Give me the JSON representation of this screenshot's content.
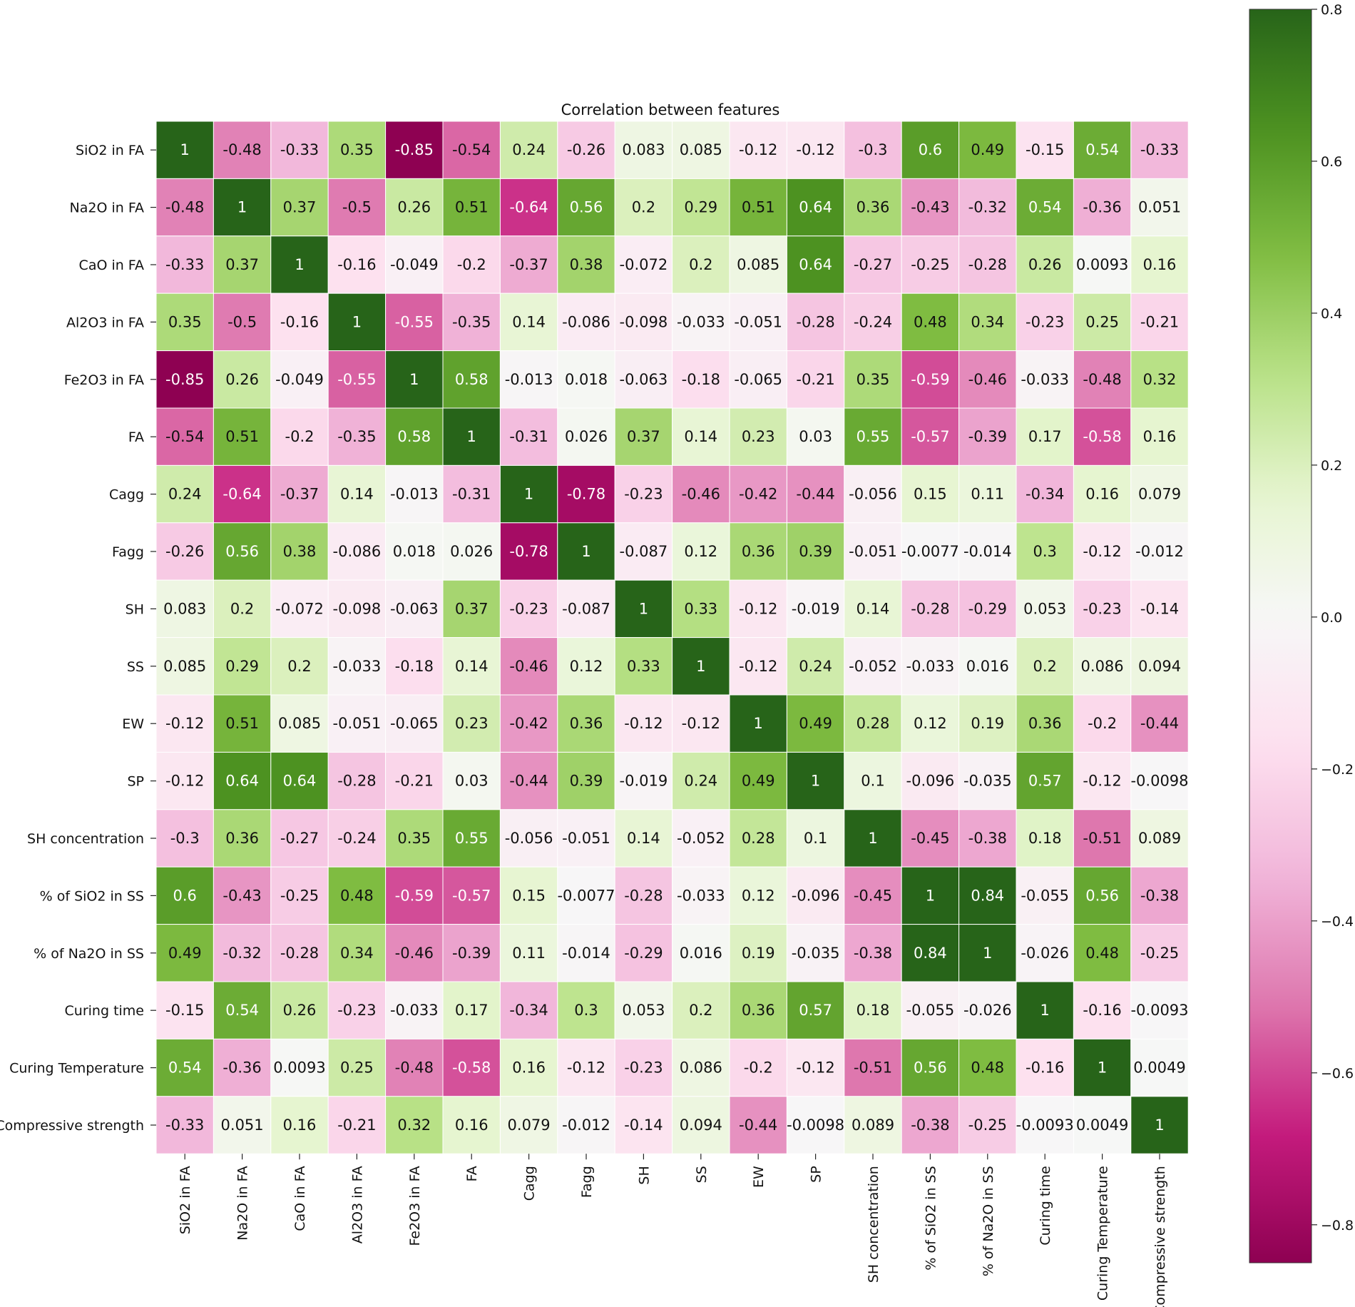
{
  "chart_data": {
    "type": "heatmap",
    "title": "Correlation between features",
    "xlabel": "",
    "ylabel": "",
    "colormap": "PiYG",
    "vmin": -0.85,
    "vmax": 0.8,
    "colorbar_ticks": [
      "0.8",
      "0.6",
      "0.4",
      "0.2",
      "0.0",
      "−0.2",
      "−0.4",
      "−0.6",
      "−0.8"
    ],
    "colorbar_tick_values": [
      0.8,
      0.6,
      0.4,
      0.2,
      0.0,
      -0.2,
      -0.4,
      -0.6,
      -0.8
    ],
    "labels": [
      "SiO2 in FA",
      "Na2O in FA",
      "CaO in FA",
      "Al2O3 in FA",
      "Fe2O3 in FA",
      "FA",
      "Cagg",
      "Fagg",
      "SH",
      "SS",
      "EW",
      "SP",
      "SH concentration",
      "% of SiO2 in SS",
      "% of Na2O in SS",
      "Curing time",
      "Curing Temperature",
      "Compressive strength"
    ],
    "matrix": [
      [
        "1",
        "-0.48",
        "-0.33",
        "0.35",
        "-0.85",
        "-0.54",
        "0.24",
        "-0.26",
        "0.083",
        "0.085",
        "-0.12",
        "-0.12",
        "-0.3",
        "0.6",
        "0.49",
        "-0.15",
        "0.54",
        "-0.33"
      ],
      [
        "-0.48",
        "1",
        "0.37",
        "-0.5",
        "0.26",
        "0.51",
        "-0.64",
        "0.56",
        "0.2",
        "0.29",
        "0.51",
        "0.64",
        "0.36",
        "-0.43",
        "-0.32",
        "0.54",
        "-0.36",
        "0.051"
      ],
      [
        "-0.33",
        "0.37",
        "1",
        "-0.16",
        "-0.049",
        "-0.2",
        "-0.37",
        "0.38",
        "-0.072",
        "0.2",
        "0.085",
        "0.64",
        "-0.27",
        "-0.25",
        "-0.28",
        "0.26",
        "0.0093",
        "0.16"
      ],
      [
        "0.35",
        "-0.5",
        "-0.16",
        "1",
        "-0.55",
        "-0.35",
        "0.14",
        "-0.086",
        "-0.098",
        "-0.033",
        "-0.051",
        "-0.28",
        "-0.24",
        "0.48",
        "0.34",
        "-0.23",
        "0.25",
        "-0.21"
      ],
      [
        "-0.85",
        "0.26",
        "-0.049",
        "-0.55",
        "1",
        "0.58",
        "-0.013",
        "0.018",
        "-0.063",
        "-0.18",
        "-0.065",
        "-0.21",
        "0.35",
        "-0.59",
        "-0.46",
        "-0.033",
        "-0.48",
        "0.32"
      ],
      [
        "-0.54",
        "0.51",
        "-0.2",
        "-0.35",
        "0.58",
        "1",
        "-0.31",
        "0.026",
        "0.37",
        "0.14",
        "0.23",
        "0.03",
        "0.55",
        "-0.57",
        "-0.39",
        "0.17",
        "-0.58",
        "0.16"
      ],
      [
        "0.24",
        "-0.64",
        "-0.37",
        "0.14",
        "-0.013",
        "-0.31",
        "1",
        "-0.78",
        "-0.23",
        "-0.46",
        "-0.42",
        "-0.44",
        "-0.056",
        "0.15",
        "0.11",
        "-0.34",
        "0.16",
        "0.079"
      ],
      [
        "-0.26",
        "0.56",
        "0.38",
        "-0.086",
        "0.018",
        "0.026",
        "-0.78",
        "1",
        "-0.087",
        "0.12",
        "0.36",
        "0.39",
        "-0.051",
        "-0.0077",
        "-0.014",
        "0.3",
        "-0.12",
        "-0.012"
      ],
      [
        "0.083",
        "0.2",
        "-0.072",
        "-0.098",
        "-0.063",
        "0.37",
        "-0.23",
        "-0.087",
        "1",
        "0.33",
        "-0.12",
        "-0.019",
        "0.14",
        "-0.28",
        "-0.29",
        "0.053",
        "-0.23",
        "-0.14"
      ],
      [
        "0.085",
        "0.29",
        "0.2",
        "-0.033",
        "-0.18",
        "0.14",
        "-0.46",
        "0.12",
        "0.33",
        "1",
        "-0.12",
        "0.24",
        "-0.052",
        "-0.033",
        "0.016",
        "0.2",
        "0.086",
        "0.094"
      ],
      [
        "-0.12",
        "0.51",
        "0.085",
        "-0.051",
        "-0.065",
        "0.23",
        "-0.42",
        "0.36",
        "-0.12",
        "-0.12",
        "1",
        "0.49",
        "0.28",
        "0.12",
        "0.19",
        "0.36",
        "-0.2",
        "-0.44"
      ],
      [
        "-0.12",
        "0.64",
        "0.64",
        "-0.28",
        "-0.21",
        "0.03",
        "-0.44",
        "0.39",
        "-0.019",
        "0.24",
        "0.49",
        "1",
        "0.1",
        "-0.096",
        "-0.035",
        "0.57",
        "-0.12",
        "-0.0098"
      ],
      [
        "-0.3",
        "0.36",
        "-0.27",
        "-0.24",
        "0.35",
        "0.55",
        "-0.056",
        "-0.051",
        "0.14",
        "-0.052",
        "0.28",
        "0.1",
        "1",
        "-0.45",
        "-0.38",
        "0.18",
        "-0.51",
        "0.089"
      ],
      [
        "0.6",
        "-0.43",
        "-0.25",
        "0.48",
        "-0.59",
        "-0.57",
        "0.15",
        "-0.0077",
        "-0.28",
        "-0.033",
        "0.12",
        "-0.096",
        "-0.45",
        "1",
        "0.84",
        "-0.055",
        "0.56",
        "-0.38"
      ],
      [
        "0.49",
        "-0.32",
        "-0.28",
        "0.34",
        "-0.46",
        "-0.39",
        "0.11",
        "-0.014",
        "-0.29",
        "0.016",
        "0.19",
        "-0.035",
        "-0.38",
        "0.84",
        "1",
        "-0.026",
        "0.48",
        "-0.25"
      ],
      [
        "-0.15",
        "0.54",
        "0.26",
        "-0.23",
        "-0.033",
        "0.17",
        "-0.34",
        "0.3",
        "0.053",
        "0.2",
        "0.36",
        "0.57",
        "0.18",
        "-0.055",
        "-0.026",
        "1",
        "-0.16",
        "-0.0093"
      ],
      [
        "0.54",
        "-0.36",
        "0.0093",
        "0.25",
        "-0.48",
        "-0.58",
        "0.16",
        "-0.12",
        "-0.23",
        "0.086",
        "-0.2",
        "-0.12",
        "-0.51",
        "0.56",
        "0.48",
        "-0.16",
        "1",
        "0.0049"
      ],
      [
        "-0.33",
        "0.051",
        "0.16",
        "-0.21",
        "0.32",
        "0.16",
        "0.079",
        "-0.012",
        "-0.14",
        "0.094",
        "-0.44",
        "-0.0098",
        "0.089",
        "-0.38",
        "-0.25",
        "-0.0093",
        "0.0049",
        "1"
      ]
    ]
  }
}
